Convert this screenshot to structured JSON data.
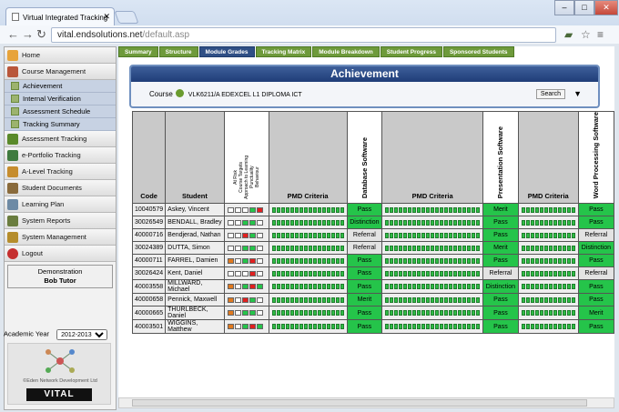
{
  "browser": {
    "tab_title": "Virtual Integrated Tracking",
    "url_host": "vital.endsolutions.net",
    "url_path": "/default.asp"
  },
  "sidebar": {
    "items": [
      {
        "label": "Home",
        "icon": "home-icon",
        "color": "#e7a33a"
      },
      {
        "label": "Course Management",
        "icon": "course-icon",
        "color": "#b9573b"
      },
      {
        "label": "Assessment Tracking",
        "icon": "assessment-icon",
        "color": "#5a8a2a"
      },
      {
        "label": "e-Portfolio Tracking",
        "icon": "portfolio-icon",
        "color": "#3f7b3f"
      },
      {
        "label": "A-Level Tracking",
        "icon": "alevel-icon",
        "color": "#c68d2e"
      },
      {
        "label": "Student Documents",
        "icon": "documents-icon",
        "color": "#8a6b3c"
      },
      {
        "label": "Learning Plan",
        "icon": "plan-icon",
        "color": "#6d8aa5"
      },
      {
        "label": "System Reports",
        "icon": "reports-icon",
        "color": "#6a7d3f"
      },
      {
        "label": "System Management",
        "icon": "management-icon",
        "color": "#b58d2c"
      },
      {
        "label": "Logout",
        "icon": "logout-icon",
        "color": "#c52f2f"
      }
    ],
    "sub_items": [
      "Achievement",
      "Internal Verification",
      "Assessment Schedule",
      "Tracking Summary"
    ],
    "user_line1": "Demonstration",
    "user_line2": "Bob Tutor",
    "academic_year_label": "Academic Year",
    "academic_year_value": "2012-2013",
    "brand": "VITAL",
    "copyright": "©Eden Network Development Ltd"
  },
  "tabs": [
    "Summary",
    "Structure",
    "Module Grades",
    "Tracking Matrix",
    "Module Breakdown",
    "Student Progress",
    "Sponsored Students"
  ],
  "achievement": {
    "title": "Achievement",
    "course_label": "Course",
    "course_code": "VLK6211/A EDEXCEL L1 DIPLOMA ICT",
    "search_label": "Search"
  },
  "table": {
    "headers": {
      "code": "Code",
      "student": "Student",
      "flags": [
        "At Risk",
        "Course Targets",
        "Approach to Learning",
        "Punctuality",
        "Behaviour"
      ],
      "pmd": "PMD Criteria",
      "units": [
        "Database Software",
        "Presentation Software",
        "Word Processing Software"
      ]
    },
    "rows": [
      {
        "code": "10040579",
        "student": "Askey, Vincent",
        "flags": [
          "#fff",
          "#fff",
          "#fff",
          "#25c44a",
          "#e02020"
        ],
        "grades": [
          "Pass",
          "Merit",
          "Pass"
        ]
      },
      {
        "code": "30026549",
        "student": "BENDALL, Bradley",
        "flags": [
          "#fff",
          "#fff",
          "#25c44a",
          "#25c44a",
          "#fff"
        ],
        "grades": [
          "Distinction",
          "Pass",
          "Pass"
        ]
      },
      {
        "code": "40000716",
        "student": "Bendjerad, Nathan",
        "flags": [
          "#fff",
          "#fff",
          "#e02020",
          "#25c44a",
          "#fff"
        ],
        "grades": [
          "Referral",
          "Pass",
          "Referral"
        ]
      },
      {
        "code": "30024389",
        "student": "DUTTA, Simon",
        "flags": [
          "#fff",
          "#fff",
          "#25c44a",
          "#25c44a",
          "#fff"
        ],
        "grades": [
          "Referral",
          "Merit",
          "Distinction"
        ]
      },
      {
        "code": "40000711",
        "student": "FARREL, Damien",
        "flags": [
          "#e07a20",
          "#fff",
          "#25c44a",
          "#e02020",
          "#fff"
        ],
        "grades": [
          "Pass",
          "Pass",
          "Pass"
        ]
      },
      {
        "code": "30026424",
        "student": "Kent, Daniel",
        "flags": [
          "#fff",
          "#fff",
          "#fff",
          "#e02020",
          "#fff"
        ],
        "grades": [
          "Pass",
          "Referral",
          "Referral"
        ]
      },
      {
        "code": "40003558",
        "student": "MILLWARD, Michael",
        "flags": [
          "#e07a20",
          "#fff",
          "#25c44a",
          "#e02020",
          "#25c44a"
        ],
        "grades": [
          "Pass",
          "Distinction",
          "Pass"
        ]
      },
      {
        "code": "40000658",
        "student": "Pennick, Maxwell",
        "flags": [
          "#e07a20",
          "#fff",
          "#e02020",
          "#25c44a",
          "#fff"
        ],
        "grades": [
          "Merit",
          "Pass",
          "Pass"
        ]
      },
      {
        "code": "40000665",
        "student": "THURLBECK, Daniel",
        "flags": [
          "#e07a20",
          "#fff",
          "#25c44a",
          "#25c44a",
          "#fff"
        ],
        "grades": [
          "Pass",
          "Pass",
          "Merit"
        ]
      },
      {
        "code": "40003501",
        "student": "WIGGINS, Matthew",
        "flags": [
          "#e07a20",
          "#fff",
          "#25c44a",
          "#e02020",
          "#25c44a"
        ],
        "grades": [
          "Pass",
          "Pass",
          "Pass"
        ]
      }
    ]
  }
}
